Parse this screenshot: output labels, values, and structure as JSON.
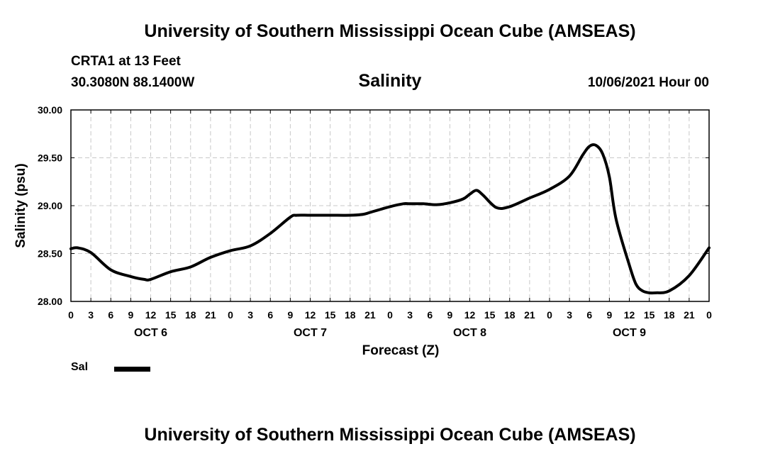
{
  "header": {
    "title": "University of Southern Mississippi Ocean Cube (AMSEAS)",
    "station": "CRTA1 at 13 Feet",
    "coords": "30.3080N  88.1400W",
    "parameter": "Salinity",
    "datetime": "10/06/2021 Hour 00"
  },
  "footer": {
    "title": "University of Southern Mississippi Ocean Cube (AMSEAS)"
  },
  "legend": {
    "label": "Sal",
    "color": "#000000"
  },
  "chart_data": {
    "type": "line",
    "title": "Salinity",
    "xlabel": "Forecast (Z)",
    "ylabel": "Salinity (psu)",
    "xlim": [
      0,
      96
    ],
    "ylim": [
      28.0,
      30.0
    ],
    "yticks": [
      28.0,
      28.5,
      29.0,
      29.5,
      30.0
    ],
    "ytick_labels": [
      "28.00",
      "28.50",
      "29.00",
      "29.50",
      "30.00"
    ],
    "xtick_hours": [
      0,
      3,
      6,
      9,
      12,
      15,
      18,
      21,
      24,
      27,
      30,
      33,
      36,
      39,
      42,
      45,
      48,
      51,
      54,
      57,
      60,
      63,
      66,
      69,
      72,
      75,
      78,
      81,
      84,
      87,
      90,
      93,
      96
    ],
    "xtick_labels": [
      "0",
      "3",
      "6",
      "9",
      "12",
      "15",
      "18",
      "21",
      "0",
      "3",
      "6",
      "9",
      "12",
      "15",
      "18",
      "21",
      "0",
      "3",
      "6",
      "9",
      "12",
      "15",
      "18",
      "21",
      "0",
      "3",
      "6",
      "9",
      "12",
      "15",
      "18",
      "21",
      "0"
    ],
    "day_labels": [
      {
        "hour": 12,
        "label": "OCT 6"
      },
      {
        "hour": 36,
        "label": "OCT 7"
      },
      {
        "hour": 60,
        "label": "OCT 8"
      },
      {
        "hour": 84,
        "label": "OCT 9"
      }
    ],
    "grid": true,
    "series": [
      {
        "name": "Sal",
        "color": "#000000",
        "x": [
          0,
          1,
          3,
          6,
          9,
          11,
          12,
          15,
          18,
          21,
          24,
          27,
          30,
          33,
          34,
          36,
          39,
          42,
          44,
          45,
          48,
          50,
          51,
          53,
          55,
          57,
          59,
          60,
          61,
          62,
          64,
          66,
          69,
          72,
          75,
          77,
          78,
          79,
          80,
          81,
          82,
          84,
          85,
          86,
          87,
          88,
          90,
          93,
          96
        ],
        "y": [
          28.55,
          28.56,
          28.51,
          28.33,
          28.26,
          28.23,
          28.23,
          28.31,
          28.36,
          28.46,
          28.53,
          28.58,
          28.71,
          28.88,
          28.9,
          28.9,
          28.9,
          28.9,
          28.91,
          28.93,
          28.99,
          29.02,
          29.02,
          29.02,
          29.01,
          29.03,
          29.07,
          29.12,
          29.16,
          29.11,
          28.98,
          28.99,
          29.08,
          29.17,
          29.31,
          29.53,
          29.62,
          29.63,
          29.54,
          29.3,
          28.86,
          28.38,
          28.18,
          28.11,
          28.09,
          28.09,
          28.11,
          28.27,
          28.56
        ]
      }
    ]
  }
}
